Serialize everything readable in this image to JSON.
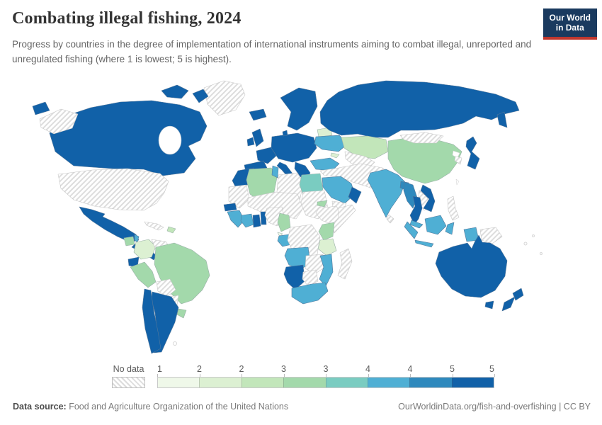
{
  "header": {
    "title": "Combating illegal fishing, 2024",
    "subtitle": "Progress by countries in the degree of implementation of international instruments aiming to combat illegal, unreported and unregulated fishing (where 1 is lowest; 5 is highest).",
    "logo": {
      "line1": "Our World",
      "line2": "in Data",
      "bg_color": "#1a3a5f",
      "stripe_color": "#c0372e"
    }
  },
  "legend": {
    "no_data_label": "No data"
  },
  "footer": {
    "datasource_label": "Data source:",
    "datasource_value": "Food and Agriculture Organization of the United Nations",
    "credit": "OurWorldinData.org/fish-and-overfishing | CC BY"
  },
  "chart_data": {
    "type": "choropleth",
    "title": "Combating illegal fishing, 2024",
    "year": "2024",
    "scale": {
      "min": 1,
      "max": 5,
      "tick_labels": [
        "1",
        "2",
        "2",
        "3",
        "3",
        "4",
        "4",
        "5",
        "5"
      ],
      "bin_colors": [
        "#eff8e9",
        "#dcf0d2",
        "#c2e6ba",
        "#a3d9ab",
        "#7accc1",
        "#4fafd4",
        "#2e89bd",
        "#1161a8"
      ],
      "no_data_style": "hatched"
    },
    "countries": [
      {
        "name": "Canada",
        "bin": 8
      },
      {
        "name": "Russia",
        "bin": 8
      },
      {
        "name": "Mexico",
        "bin": 8
      },
      {
        "name": "Honduras",
        "bin": 8
      },
      {
        "name": "Nicaragua",
        "bin": 8
      },
      {
        "name": "Costa Rica",
        "bin": 8
      },
      {
        "name": "Panama",
        "bin": 8
      },
      {
        "name": "Ecuador",
        "bin": 8
      },
      {
        "name": "Chile",
        "bin": 8
      },
      {
        "name": "Argentina",
        "bin": 8
      },
      {
        "name": "Iceland",
        "bin": 8
      },
      {
        "name": "Norway",
        "bin": 8
      },
      {
        "name": "Sweden",
        "bin": 8
      },
      {
        "name": "Finland",
        "bin": 8
      },
      {
        "name": "Denmark",
        "bin": 8
      },
      {
        "name": "United Kingdom",
        "bin": 8
      },
      {
        "name": "Ireland",
        "bin": 8
      },
      {
        "name": "France",
        "bin": 8
      },
      {
        "name": "Spain",
        "bin": 8
      },
      {
        "name": "Portugal",
        "bin": 8
      },
      {
        "name": "Germany",
        "bin": 8
      },
      {
        "name": "Poland",
        "bin": 8
      },
      {
        "name": "Italy",
        "bin": 8
      },
      {
        "name": "Greece",
        "bin": 8
      },
      {
        "name": "Romania",
        "bin": 8
      },
      {
        "name": "Bulgaria",
        "bin": 8
      },
      {
        "name": "Japan",
        "bin": 8
      },
      {
        "name": "Thailand",
        "bin": 8
      },
      {
        "name": "Vietnam",
        "bin": 8
      },
      {
        "name": "Australia",
        "bin": 8
      },
      {
        "name": "New Zealand",
        "bin": 8
      },
      {
        "name": "Morocco",
        "bin": 8
      },
      {
        "name": "Senegal",
        "bin": 8
      },
      {
        "name": "Ghana",
        "bin": 8
      },
      {
        "name": "Togo",
        "bin": 8
      },
      {
        "name": "Namibia",
        "bin": 8
      },
      {
        "name": "Oman",
        "bin": 8
      },
      {
        "name": "Bangladesh",
        "bin": 7
      },
      {
        "name": "Myanmar",
        "bin": 7
      },
      {
        "name": "Belize",
        "bin": 6
      },
      {
        "name": "Turkey",
        "bin": 6
      },
      {
        "name": "Ukraine",
        "bin": 6
      },
      {
        "name": "Saudi Arabia",
        "bin": 6
      },
      {
        "name": "Tunisia",
        "bin": 6
      },
      {
        "name": "India",
        "bin": 6
      },
      {
        "name": "Indonesia",
        "bin": 6
      },
      {
        "name": "Malaysia",
        "bin": 6
      },
      {
        "name": "Guinea",
        "bin": 6
      },
      {
        "name": "Sierra Leone",
        "bin": 6
      },
      {
        "name": "Liberia",
        "bin": 6
      },
      {
        "name": "Cote d'Ivoire",
        "bin": 6
      },
      {
        "name": "Gabon",
        "bin": 6
      },
      {
        "name": "Angola",
        "bin": 6
      },
      {
        "name": "Mozambique",
        "bin": 6
      },
      {
        "name": "South Africa",
        "bin": 6
      },
      {
        "name": "Egypt",
        "bin": 5
      },
      {
        "name": "Guatemala",
        "bin": 4
      },
      {
        "name": "Peru",
        "bin": 4
      },
      {
        "name": "Brazil",
        "bin": 4
      },
      {
        "name": "Uruguay",
        "bin": 4
      },
      {
        "name": "Guyana",
        "bin": 4
      },
      {
        "name": "Algeria",
        "bin": 4
      },
      {
        "name": "Cameroon",
        "bin": 4
      },
      {
        "name": "Kenya",
        "bin": 4
      },
      {
        "name": "Eritrea",
        "bin": 4
      },
      {
        "name": "China",
        "bin": 4
      },
      {
        "name": "Kazakhstan",
        "bin": 3
      },
      {
        "name": "Dominican Republic",
        "bin": 3
      },
      {
        "name": "Colombia",
        "bin": 2
      },
      {
        "name": "Tanzania",
        "bin": 2
      },
      {
        "name": "Belarus",
        "bin": 2
      },
      {
        "name": "Georgia",
        "bin": 2
      },
      {
        "name": "Equatorial Guinea",
        "bin": 1
      },
      {
        "name": "United States",
        "bin": 0
      },
      {
        "name": "Greenland",
        "bin": 0
      },
      {
        "name": "Cuba",
        "bin": 0
      },
      {
        "name": "Venezuela",
        "bin": 0
      },
      {
        "name": "Bolivia",
        "bin": 0
      },
      {
        "name": "Paraguay",
        "bin": 0
      },
      {
        "name": "Libya",
        "bin": 0
      },
      {
        "name": "Mauritania",
        "bin": 0
      },
      {
        "name": "Mali",
        "bin": 0
      },
      {
        "name": "Niger",
        "bin": 0
      },
      {
        "name": "Chad",
        "bin": 0
      },
      {
        "name": "Sudan",
        "bin": 0
      },
      {
        "name": "Nigeria",
        "bin": 0
      },
      {
        "name": "Ethiopia",
        "bin": 0
      },
      {
        "name": "Somalia",
        "bin": 0
      },
      {
        "name": "Democratic Republic of Congo",
        "bin": 0
      },
      {
        "name": "Zambia",
        "bin": 0
      },
      {
        "name": "Zimbabwe",
        "bin": 0
      },
      {
        "name": "Botswana",
        "bin": 0
      },
      {
        "name": "Madagascar",
        "bin": 0
      },
      {
        "name": "Iran",
        "bin": 0
      },
      {
        "name": "Iraq",
        "bin": 0
      },
      {
        "name": "Syria",
        "bin": 0
      },
      {
        "name": "Yemen",
        "bin": 0
      },
      {
        "name": "Afghanistan",
        "bin": 0
      },
      {
        "name": "Pakistan",
        "bin": 0
      },
      {
        "name": "Turkmenistan",
        "bin": 0
      },
      {
        "name": "Uzbekistan",
        "bin": 0
      },
      {
        "name": "Mongolia",
        "bin": 0
      },
      {
        "name": "South Korea",
        "bin": 0
      },
      {
        "name": "Sri Lanka",
        "bin": 0
      },
      {
        "name": "Laos",
        "bin": 0
      },
      {
        "name": "Cambodia",
        "bin": 0
      },
      {
        "name": "Philippines",
        "bin": 0
      },
      {
        "name": "Papua New Guinea",
        "bin": 0
      }
    ]
  }
}
